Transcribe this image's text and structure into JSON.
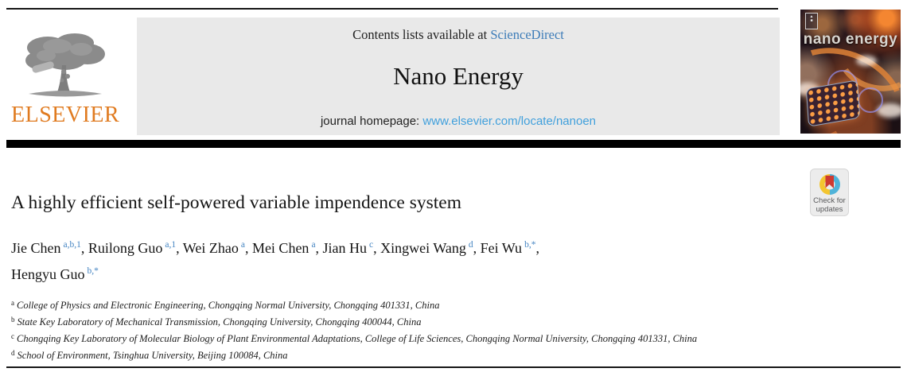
{
  "header": {
    "publisher": "ELSEVIER",
    "contents_prefix": "Contents lists available at ",
    "contents_link": "ScienceDirect",
    "journal_name": "Nano Energy",
    "homepage_prefix": "journal homepage: ",
    "homepage_link": "www.elsevier.com/locate/nanoen",
    "cover_title": "nano energy"
  },
  "article": {
    "title": "A highly efficient self-powered variable impendence system",
    "authors": [
      {
        "name": "Jie Chen",
        "sup": "a,b,1"
      },
      {
        "name": "Ruilong Guo",
        "sup": "a,1"
      },
      {
        "name": "Wei Zhao",
        "sup": "a"
      },
      {
        "name": "Mei Chen",
        "sup": "a"
      },
      {
        "name": "Jian Hu",
        "sup": "c"
      },
      {
        "name": "Xingwei Wang",
        "sup": "d"
      },
      {
        "name": "Fei Wu",
        "sup": "b,*"
      },
      {
        "name": "Hengyu Guo",
        "sup": "b,*",
        "break_before": true
      }
    ],
    "affiliations": [
      {
        "sup": "a",
        "text": "College of Physics and Electronic Engineering, Chongqing Normal University, Chongqing 401331, China"
      },
      {
        "sup": "b",
        "text": "State Key Laboratory of Mechanical Transmission, Chongqing University, Chongqing 400044, China"
      },
      {
        "sup": "c",
        "text": "Chongqing Key Laboratory of Molecular Biology of Plant Environmental Adaptations, College of Life Sciences, Chongqing Normal University, Chongqing 401331, China"
      },
      {
        "sup": "d",
        "text": "School of Environment, Tsinghua University, Beijing 100084, China"
      }
    ]
  },
  "badge": {
    "line1": "Check for",
    "line2": "updates"
  },
  "colors": {
    "sciencedirect_link": "#3d7cb8",
    "homepage_link": "#41a0dc",
    "elsevier_orange": "#e07b20",
    "author_superscript_blue": "#4585c2",
    "header_background": "#e9e9e9",
    "crossmark_yellow": "#f3c530",
    "crossmark_blue": "#4fb3d9",
    "crossmark_red": "#ce3a31"
  }
}
